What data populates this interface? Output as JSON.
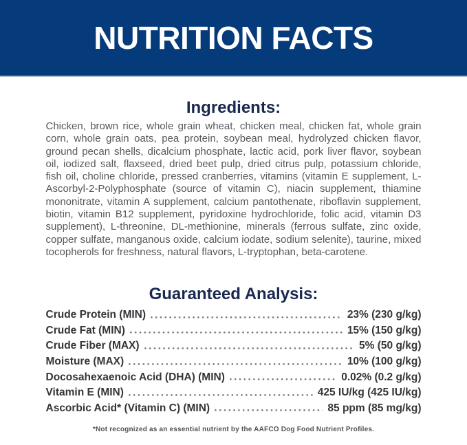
{
  "header": {
    "title": "NUTRITION FACTS"
  },
  "ingredients": {
    "heading": "Ingredients:",
    "text": "Chicken, brown rice, whole grain wheat, chicken meal, chicken fat, whole grain corn, whole grain oats, pea protein, soybean meal, hydrolyzed chicken flavor, ground pecan shells, dicalcium phosphate, lactic acid, pork liver flavor, soybean oil, iodized salt, flaxseed, dried beet pulp, dried citrus pulp, potassium chloride, fish oil, choline chloride, pressed cranberries, vitamins (vitamin E supplement, L-Ascorbyl-2-Polyphosphate (source of vitamin C), niacin supplement, thiamine mononitrate, vitamin A supplement, calcium pantothenate, riboflavin supplement, biotin, vitamin B12 supplement, pyridoxine hydrochloride, folic acid, vitamin D3 supplement), L-threonine, DL-methionine, minerals (ferrous sulfate, zinc oxide, copper sulfate, manganous oxide, calcium iodate, sodium selenite), taurine, mixed tocopherols for freshness, natural flavors, L-tryptophan, beta-carotene."
  },
  "guaranteed_analysis": {
    "heading": "Guaranteed Analysis:",
    "rows": [
      {
        "label": "Crude Protein (MIN)",
        "value": "23% (230 g/kg)"
      },
      {
        "label": "Crude Fat (MIN)",
        "value": "15% (150 g/kg)"
      },
      {
        "label": "Crude Fiber (MAX)",
        "value": "5% (50 g/kg)"
      },
      {
        "label": "Moisture (MAX)",
        "value": "10% (100 g/kg)"
      },
      {
        "label": "Docosahexaenoic Acid (DHA) (MIN)",
        "value": "0.02% (0.2 g/kg)"
      },
      {
        "label": "Vitamin E (MIN)",
        "value": "425 IU/kg (425 IU/kg)"
      },
      {
        "label": "Ascorbic Acid* (Vitamin C) (MIN)",
        "value": "85 ppm (85 mg/kg)"
      }
    ]
  },
  "footnote": "*Not recognized as an essential nutrient by the AAFCO Dog Food Nutrient Profiles.",
  "colors": {
    "banner_blue": "#053a7b",
    "heading_navy": "#1a2950",
    "body_gray": "#57585b",
    "analysis_charcoal": "#343539",
    "leader_dot_gray": "#7a7b7e"
  }
}
